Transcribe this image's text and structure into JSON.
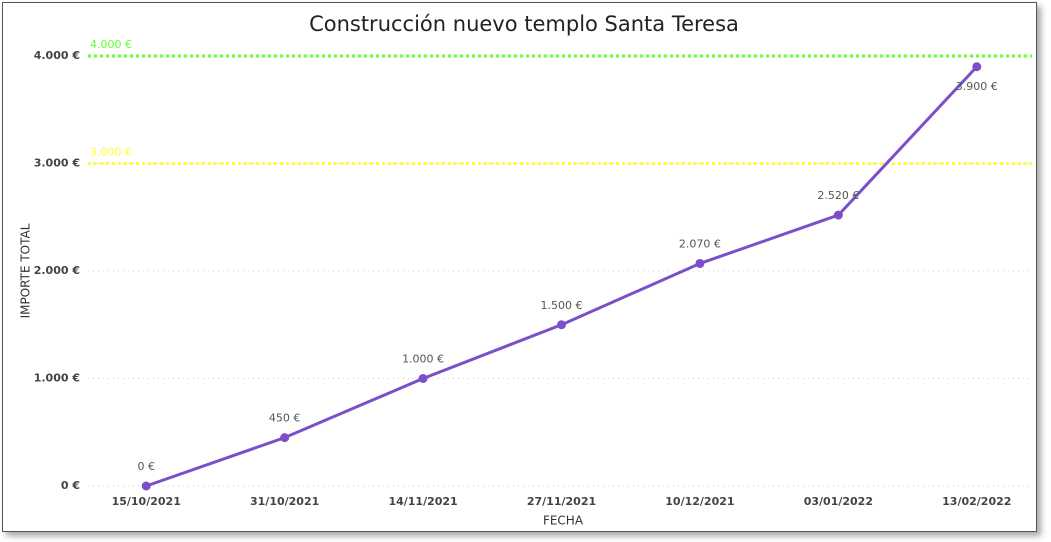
{
  "chart_data": {
    "type": "line",
    "title": "Construcción nuevo templo Santa Teresa",
    "x_label": "FECHA",
    "y_label": "IMPORTE TOTAL",
    "categories": [
      "15/10/2021",
      "31/10/2021",
      "14/11/2021",
      "27/11/2021",
      "10/12/2021",
      "03/01/2022",
      "13/02/2022"
    ],
    "series": [
      {
        "name": "IMPORTE TOTAL",
        "color": "#7b4fc9",
        "values": [
          0,
          450,
          1000,
          1500,
          2070,
          2520,
          3900
        ],
        "value_labels": [
          "0 €",
          "450 €",
          "1.000 €",
          "1.500 €",
          "2.070 €",
          "2.520 €",
          "3.900 €"
        ]
      }
    ],
    "ylim": [
      0,
      4000
    ],
    "yticks": [
      {
        "value": 0,
        "label": "0 €"
      },
      {
        "value": 1000,
        "label": "1.000 €"
      },
      {
        "value": 2000,
        "label": "2.000 €"
      },
      {
        "value": 3000,
        "label": "3.000 €"
      },
      {
        "value": 4000,
        "label": "4.000 €"
      }
    ],
    "grid": true,
    "reference_lines": [
      {
        "value": 4000,
        "label": "4.000 €",
        "color": "#66ff33"
      },
      {
        "value": 3000,
        "label": "3.000 €",
        "color": "#ffff33"
      }
    ]
  }
}
